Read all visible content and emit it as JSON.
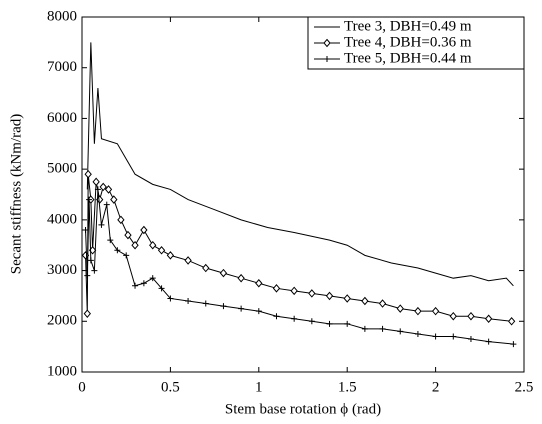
{
  "chart_data": {
    "type": "line",
    "xlabel": "Stem base rotation ϕ (rad)",
    "ylabel": "Secant stiffness (kNm/rad)",
    "xlim": [
      0,
      2.5
    ],
    "ylim": [
      1000,
      8000
    ],
    "xticks": [
      0,
      0.5,
      1,
      1.5,
      2,
      2.5
    ],
    "yticks": [
      1000,
      2000,
      3000,
      4000,
      5000,
      6000,
      7000,
      8000
    ],
    "grid": false,
    "legend": "upper right",
    "series": [
      {
        "name": "Tree 3, DBH=0.49 m",
        "color": "#000000",
        "marker": "none",
        "x": [
          0.03,
          0.05,
          0.07,
          0.09,
          0.11,
          0.2,
          0.25,
          0.3,
          0.4,
          0.5,
          0.6,
          0.75,
          0.9,
          1.05,
          1.2,
          1.4,
          1.5,
          1.6,
          1.75,
          1.9,
          2.0,
          2.1,
          2.2,
          2.3,
          2.4,
          2.44
        ],
        "values": [
          4600,
          7500,
          5500,
          6600,
          5600,
          5500,
          5200,
          4900,
          4700,
          4600,
          4400,
          4200,
          4000,
          3850,
          3750,
          3600,
          3500,
          3300,
          3150,
          3050,
          2950,
          2850,
          2900,
          2800,
          2850,
          2700
        ]
      },
      {
        "name": "Tree 4, DBH=0.36 m",
        "color": "#000000",
        "marker": "diamond",
        "x": [
          0.02,
          0.03,
          0.035,
          0.05,
          0.06,
          0.08,
          0.1,
          0.12,
          0.15,
          0.18,
          0.22,
          0.26,
          0.3,
          0.35,
          0.4,
          0.45,
          0.5,
          0.6,
          0.7,
          0.8,
          0.9,
          1.0,
          1.1,
          1.2,
          1.3,
          1.4,
          1.5,
          1.6,
          1.7,
          1.8,
          1.9,
          2.0,
          2.1,
          2.2,
          2.3,
          2.43
        ],
        "values": [
          3300,
          2150,
          4900,
          4400,
          3400,
          4750,
          4400,
          4650,
          4600,
          4400,
          4000,
          3700,
          3500,
          3800,
          3500,
          3400,
          3300,
          3200,
          3050,
          2950,
          2850,
          2750,
          2650,
          2600,
          2550,
          2500,
          2450,
          2400,
          2350,
          2250,
          2200,
          2200,
          2100,
          2100,
          2050,
          2000
        ]
      },
      {
        "name": "Tree 5, DBH=0.44 m",
        "color": "#000000",
        "marker": "plus",
        "x": [
          0.02,
          0.03,
          0.04,
          0.05,
          0.07,
          0.09,
          0.11,
          0.14,
          0.16,
          0.2,
          0.25,
          0.3,
          0.35,
          0.4,
          0.45,
          0.5,
          0.6,
          0.7,
          0.8,
          0.9,
          1.0,
          1.1,
          1.2,
          1.3,
          1.4,
          1.5,
          1.6,
          1.7,
          1.8,
          1.9,
          2.0,
          2.1,
          2.2,
          2.3,
          2.44
        ],
        "values": [
          3800,
          2900,
          4400,
          3200,
          3000,
          4600,
          3900,
          4300,
          3600,
          3400,
          3300,
          2700,
          2750,
          2850,
          2650,
          2450,
          2400,
          2350,
          2300,
          2250,
          2200,
          2100,
          2050,
          2000,
          1950,
          1950,
          1850,
          1850,
          1800,
          1750,
          1700,
          1700,
          1650,
          1600,
          1550
        ]
      }
    ]
  }
}
